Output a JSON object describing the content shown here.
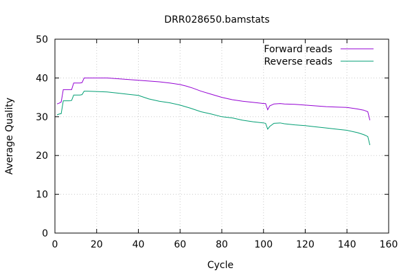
{
  "chart_data": {
    "type": "line",
    "title": "DRR028650.bamstats",
    "xlabel": "Cycle",
    "ylabel": "Average Quality",
    "xlim": [
      0,
      160
    ],
    "ylim": [
      0,
      50
    ],
    "xticks": [
      0,
      20,
      40,
      60,
      80,
      100,
      120,
      140,
      160
    ],
    "yticks": [
      0,
      10,
      20,
      30,
      40,
      50
    ],
    "grid": true,
    "legend": "top-right",
    "series": [
      {
        "name": "Forward reads",
        "color": "#9400d3",
        "x": [
          1,
          2,
          3,
          4,
          5,
          6,
          7,
          8,
          9,
          10,
          11,
          12,
          13,
          14,
          15,
          20,
          25,
          30,
          35,
          40,
          45,
          50,
          55,
          60,
          63,
          66,
          70,
          75,
          80,
          85,
          90,
          95,
          100,
          101,
          102,
          103,
          105,
          108,
          110,
          115,
          120,
          125,
          130,
          135,
          140,
          145,
          148,
          150,
          151
        ],
        "values": [
          33.3,
          33.5,
          33.8,
          37.0,
          37.0,
          37.0,
          37.0,
          37.0,
          38.7,
          38.7,
          38.7,
          38.7,
          38.8,
          40.0,
          40.0,
          40.0,
          40.0,
          39.8,
          39.6,
          39.4,
          39.2,
          39.0,
          38.7,
          38.3,
          37.9,
          37.4,
          36.6,
          35.8,
          35.0,
          34.4,
          34.0,
          33.7,
          33.4,
          33.4,
          31.8,
          32.8,
          33.3,
          33.4,
          33.3,
          33.2,
          33.0,
          32.8,
          32.6,
          32.5,
          32.4,
          32.0,
          31.7,
          31.3,
          29.1
        ]
      },
      {
        "name": "Reverse reads",
        "color": "#009e73",
        "x": [
          1,
          2,
          3,
          4,
          5,
          6,
          7,
          8,
          9,
          10,
          11,
          12,
          13,
          14,
          15,
          20,
          25,
          30,
          35,
          40,
          45,
          50,
          55,
          60,
          65,
          70,
          75,
          80,
          85,
          90,
          95,
          100,
          101,
          102,
          103,
          105,
          108,
          110,
          115,
          120,
          125,
          130,
          135,
          140,
          145,
          148,
          150,
          151
        ],
        "values": [
          30.5,
          30.7,
          30.8,
          34.1,
          34.1,
          34.1,
          34.1,
          34.2,
          35.6,
          35.6,
          35.6,
          35.6,
          35.7,
          36.6,
          36.6,
          36.5,
          36.4,
          36.1,
          35.8,
          35.5,
          34.6,
          34.0,
          33.6,
          33.0,
          32.2,
          31.3,
          30.7,
          30.0,
          29.7,
          29.1,
          28.7,
          28.4,
          28.3,
          26.8,
          27.5,
          28.3,
          28.4,
          28.2,
          27.9,
          27.7,
          27.4,
          27.1,
          26.8,
          26.5,
          25.9,
          25.4,
          24.9,
          22.7
        ]
      }
    ]
  }
}
